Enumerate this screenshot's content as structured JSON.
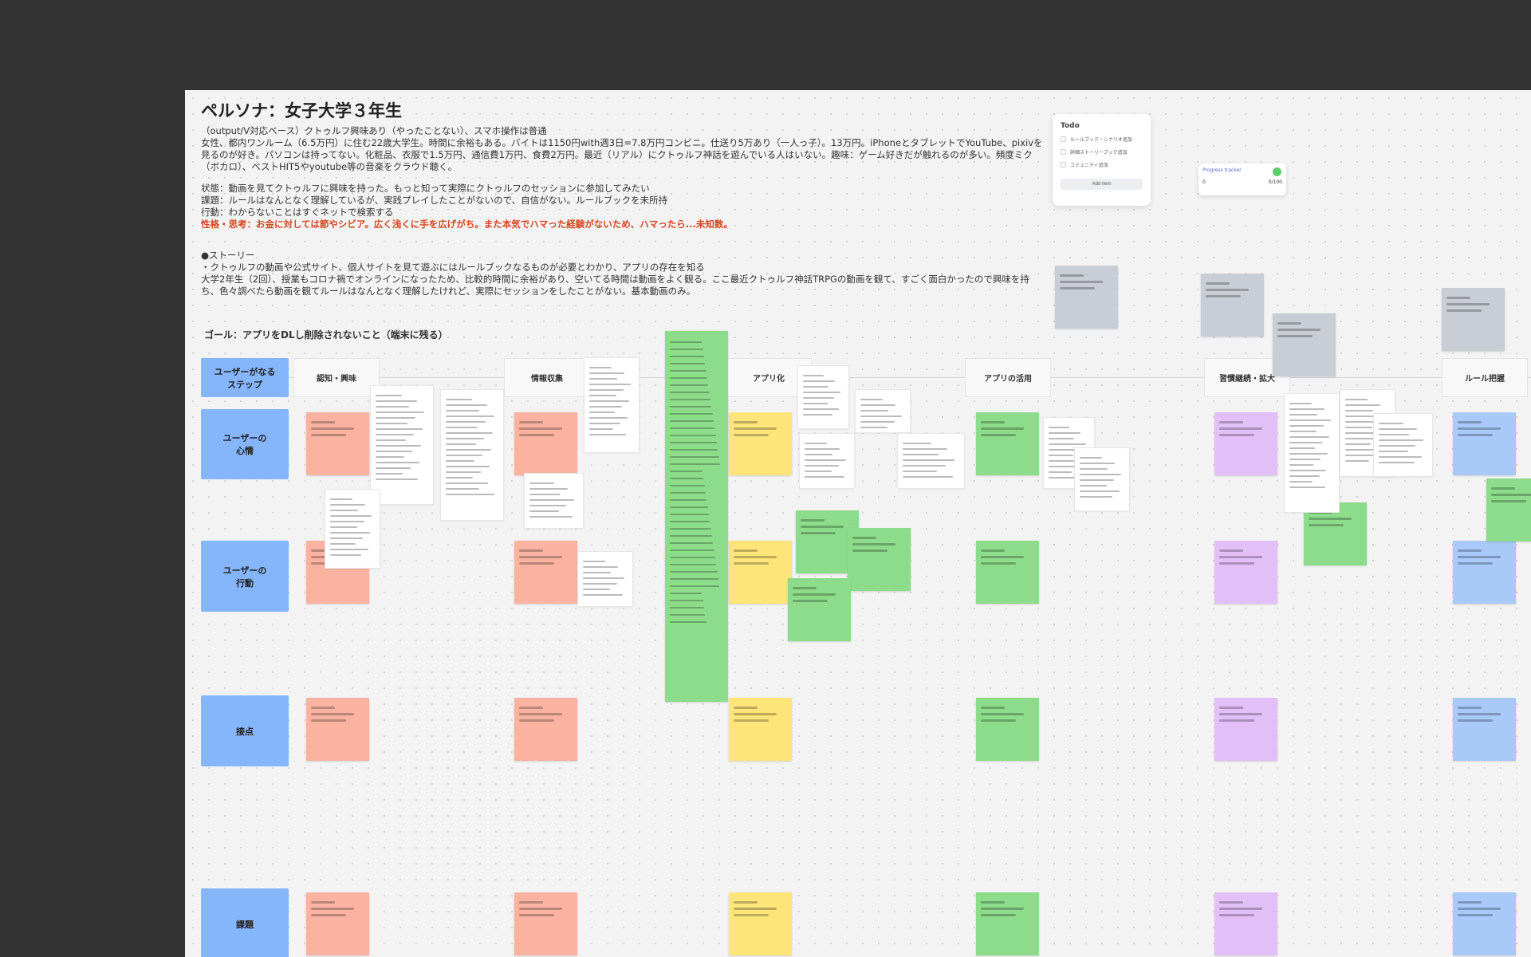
{
  "persona": {
    "title": "ペルソナ：女子大学３年生",
    "lines": [
      "（output/V対応ベース）クトゥルフ興味あり（やったことない）、スマホ操作は普通",
      "女性、都内ワンルーム（6.5万円）に住む22歳大学生。時間に余裕もある。バイトは1150円with週3日=7.8万円コンビニ。仕送り5万あり（一人っ子）。13万円。iPhoneとタブレットでYouTube、pixivを見るのが好き。パソコンは持ってない。化粧品、衣服で1.5万円、通信費1万円、食費2万円。最近（リアル）にクトゥルフ神話を遊んでいる人はいない。趣味：ゲーム好きだが触れるのが多い。頻度ミク（ボカロ）、ベストHIT5やyoutube等の音楽をクラウド聴く。"
    ],
    "state": "状態：動画を見てクトゥルフに興味を持った。もっと知って実際にクトゥルフのセッションに参加してみたい",
    "issue": "課題：ルールはなんとなく理解しているが、実践プレイしたことがないので、自信がない。ルールブックを未所持",
    "action": "行動：わからないことはすぐネットで検索する",
    "character": "性格・思考：お金に対しては節やシビア。広く浅くに手を広げがち。また本気でハマった経験がないため、ハマったら...未知数。",
    "story_head": "●ストーリー",
    "story": [
      "・クトゥルフの動画や公式サイト、個人サイトを見て遊ぶにはルールブックなるものが必要とわかり、アプリの存在を知る",
      "大学2年生（2回）、授業もコロナ禍でオンラインになったため、比較的時間に余裕があり、空いてる時間は動画をよく観る。ここ最近クトゥルフ神話TRPGの動画を観て、すごく面白かったので興味を持ち、色々調べたら動画を観てルールはなんとなく理解したけれど、実際にセッションをしたことがない。基本動画のみ。"
    ],
    "goal": "ゴール：アプリをDLし削除されないこと（端末に残る）"
  },
  "rows": [
    "ユーザーがなる\nステップ",
    "ユーザーの\n心情",
    "ユーザーの\n行動",
    "接点",
    "課題"
  ],
  "columns": [
    "認知・興味",
    "情報収集",
    "アプリ化",
    "アプリの活用",
    "習慣継続・拡大",
    "ルール把握"
  ],
  "colors": {
    "salmon": "#f9b3a0",
    "yellow": "#fde57a",
    "green": "#8ddc8b",
    "purple": "#e3bff8",
    "blue": "#a9c9f8",
    "grey": "#c9ced6",
    "row_label": "#85b5fb"
  },
  "todo": {
    "title": "Todo",
    "items": [
      "ルールブック・シナリオ追加",
      "詳細ストーリーブック追加",
      "コミュニティ追加"
    ],
    "button": "Add item"
  },
  "mini_card": {
    "title": "Progress tracker",
    "value": "0",
    "right": "0/100"
  }
}
